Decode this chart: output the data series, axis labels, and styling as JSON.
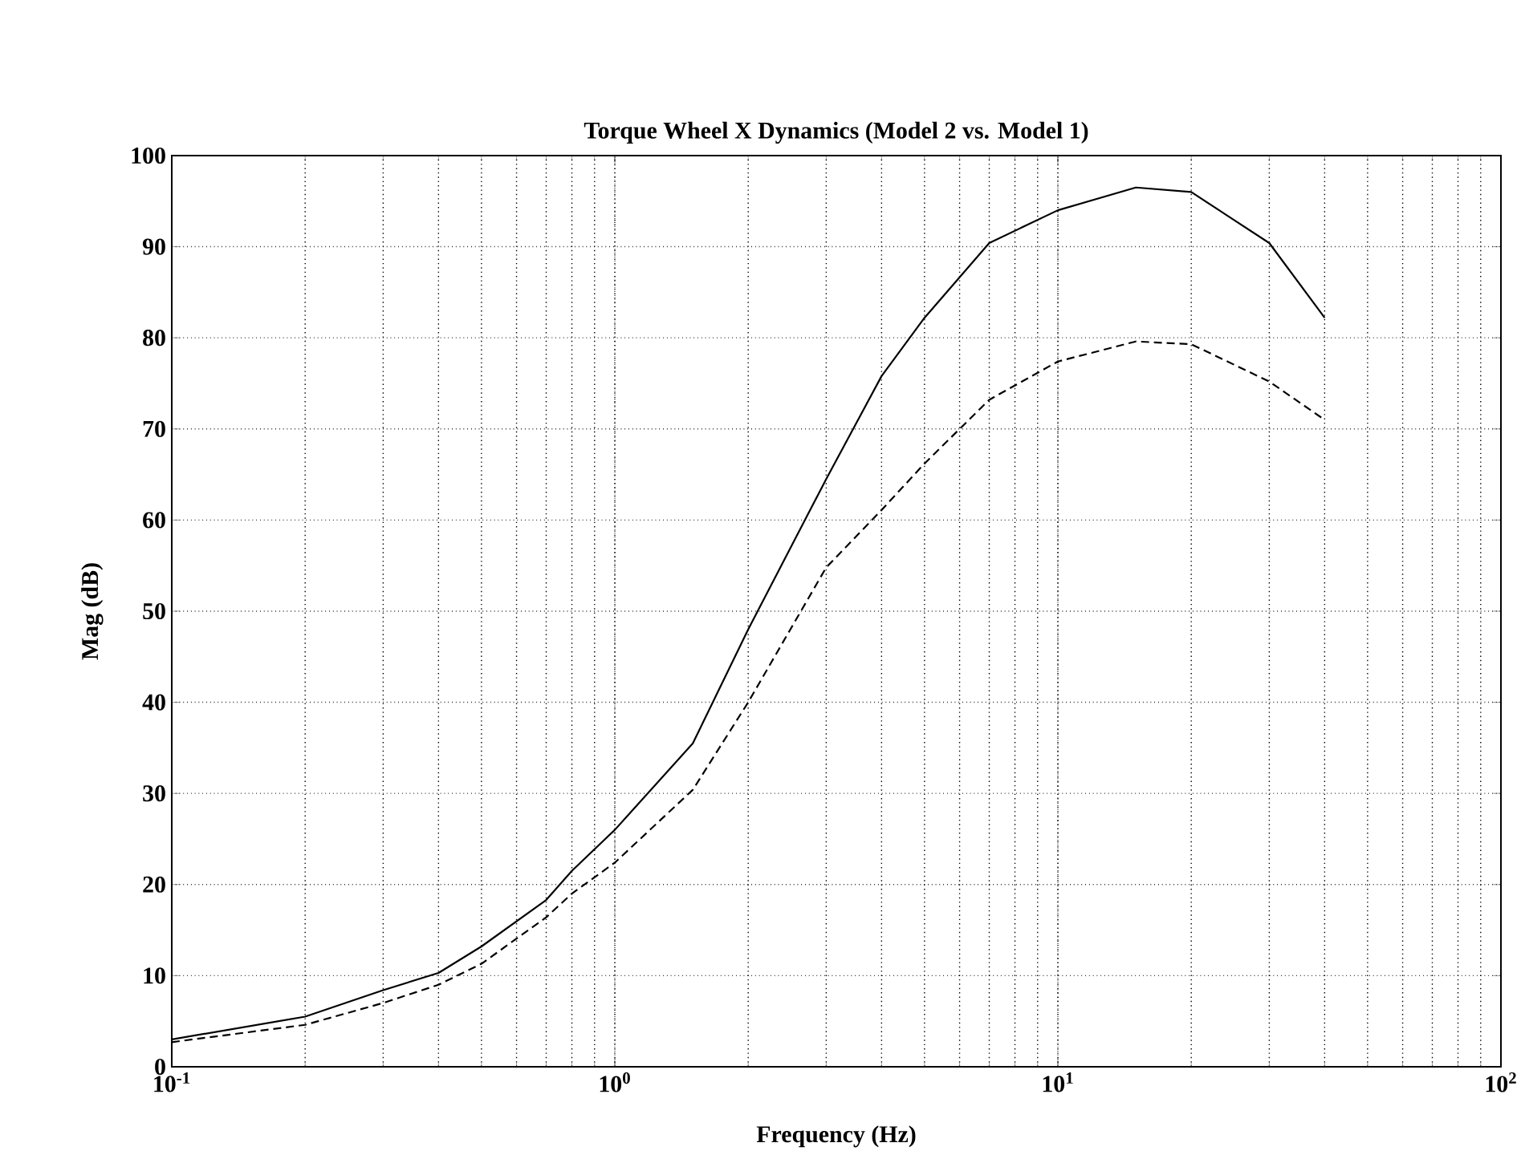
{
  "chart_data": {
    "type": "line",
    "title": "Torque Wheel X Dynamics (Model 2 vs. Model 1)",
    "xlabel": "Frequency (Hz)",
    "ylabel": "Mag (dB)",
    "log": "x",
    "grid": true,
    "xlim": [
      0.1,
      100
    ],
    "ylim": [
      0,
      100
    ],
    "xticks": [
      {
        "value": 0.1,
        "label": "10$^{-1}$"
      },
      {
        "value": 1,
        "label": "10$^{0}$"
      },
      {
        "value": 10,
        "label": "10$^{1}$"
      },
      {
        "value": 100,
        "label": "10$^{2}$"
      }
    ],
    "yticks": [
      0,
      10,
      20,
      30,
      40,
      50,
      60,
      70,
      80,
      90,
      100
    ],
    "x": [
      0.1,
      0.2,
      0.3,
      0.4,
      0.5,
      0.7,
      0.8,
      1,
      1.5,
      2,
      3,
      4,
      5,
      7,
      10,
      15,
      20,
      30,
      40
    ],
    "series": [
      {
        "color": "#000000",
        "line_style": "solid",
        "values": [
          3.0,
          5.5,
          8.4,
          10.3,
          13.2,
          18.3,
          21.5,
          26,
          35.5,
          48,
          64.5,
          75.8,
          82.2,
          90.4,
          94,
          96.5,
          96,
          90.4,
          82.2
        ]
      },
      {
        "color": "#000000",
        "line_style": "dashed",
        "values": [
          2.7,
          4.6,
          7,
          9,
          11.3,
          16.4,
          19,
          22.4,
          30.4,
          40,
          54.8,
          61.1,
          66.2,
          73.2,
          77.4,
          79.6,
          79.3,
          75.2,
          71
        ]
      }
    ]
  }
}
